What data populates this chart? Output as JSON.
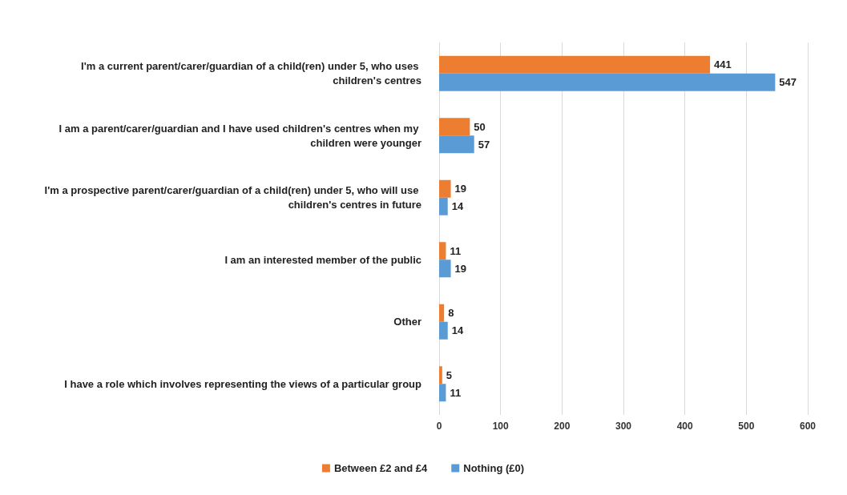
{
  "chart_data": {
    "type": "bar",
    "orientation": "horizontal",
    "categories": [
      "I'm a current parent/carer/guardian of a child(ren) under 5, who uses children's centres",
      "I am a parent/carer/guardian and I have used children's centres when my children were younger",
      "I'm a prospective parent/carer/guardian of a child(ren) under 5, who will use children's centres in future",
      "I am an interested member of the public",
      "Other",
      "I have a role which involves representing the views of a particular group"
    ],
    "series": [
      {
        "name": "Between £2 and £4",
        "color": "#ed7d31",
        "values": [
          441,
          50,
          19,
          11,
          8,
          5
        ]
      },
      {
        "name": "Nothing (£0)",
        "color": "#5b9bd5",
        "values": [
          547,
          57,
          14,
          19,
          14,
          11
        ]
      }
    ],
    "xlim": [
      0,
      600
    ],
    "xticks": [
      0,
      100,
      200,
      300,
      400,
      500,
      600
    ],
    "grid": "x",
    "legend": "bottom",
    "data_labels": true
  }
}
